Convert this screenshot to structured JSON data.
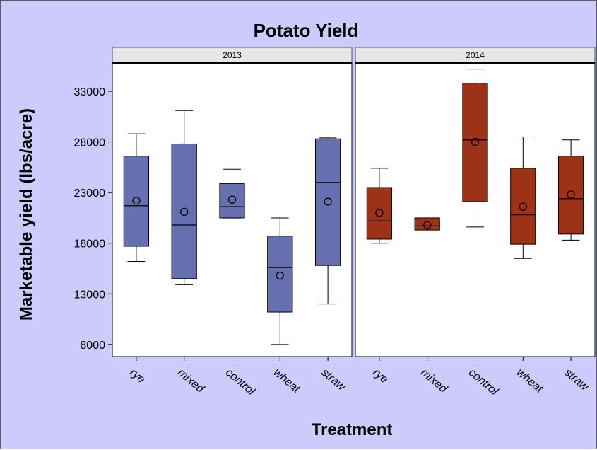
{
  "chart_data": {
    "type": "box",
    "title": "Potato Yield",
    "xlabel": "Treatment",
    "ylabel": "Marketable yield (lbs/acre)",
    "ylim": [
      6800,
      35800
    ],
    "yticks": [
      8000,
      13000,
      18000,
      23000,
      28000,
      33000
    ],
    "categories": [
      "rye",
      "mixed",
      "control",
      "wheat",
      "straw"
    ],
    "panels": [
      {
        "label": "2013",
        "color": "#6670b0",
        "boxes": [
          {
            "category": "rye",
            "min": 16200,
            "q1": 17700,
            "median": 21700,
            "q3": 26600,
            "max": 28800,
            "mean": 22200
          },
          {
            "category": "mixed",
            "min": 13900,
            "q1": 14500,
            "median": 19800,
            "q3": 27800,
            "max": 31100,
            "mean": 21100
          },
          {
            "category": "control",
            "min": 20400,
            "q1": 20500,
            "median": 21600,
            "q3": 23900,
            "max": 25300,
            "mean": 22300
          },
          {
            "category": "wheat",
            "min": 8000,
            "q1": 11200,
            "median": 15600,
            "q3": 18700,
            "max": 20500,
            "mean": 14800
          },
          {
            "category": "straw",
            "min": 12000,
            "q1": 15800,
            "median": 24000,
            "q3": 28300,
            "max": 28400,
            "mean": 22100
          }
        ]
      },
      {
        "label": "2014",
        "color": "#9e3217",
        "boxes": [
          {
            "category": "rye",
            "min": 18000,
            "q1": 18400,
            "median": 20200,
            "q3": 23500,
            "max": 25400,
            "mean": 21000
          },
          {
            "category": "mixed",
            "min": 19200,
            "q1": 19300,
            "median": 19700,
            "q3": 20500,
            "max": 20500,
            "mean": 19800
          },
          {
            "category": "control",
            "min": 19600,
            "q1": 22100,
            "median": 28200,
            "q3": 33800,
            "max": 35200,
            "mean": 28000
          },
          {
            "category": "wheat",
            "min": 16500,
            "q1": 17900,
            "median": 20800,
            "q3": 25400,
            "max": 28500,
            "mean": 21600
          },
          {
            "category": "straw",
            "min": 18300,
            "q1": 18900,
            "median": 22400,
            "q3": 26600,
            "max": 28200,
            "mean": 22800
          }
        ]
      }
    ]
  }
}
